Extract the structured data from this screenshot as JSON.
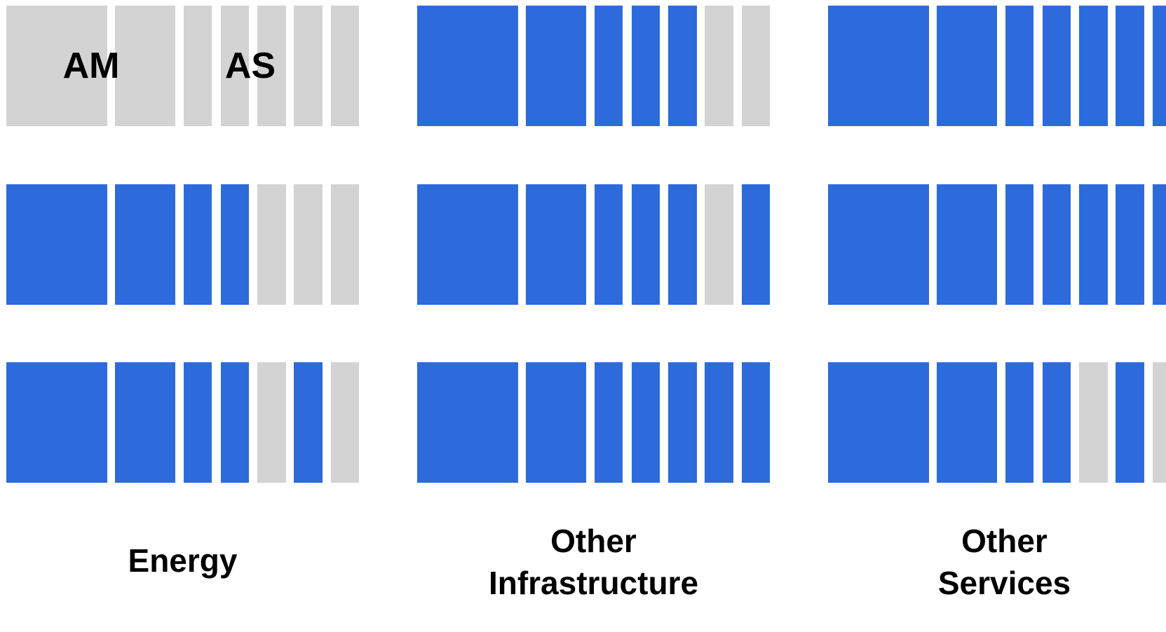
{
  "colors": {
    "filled": "#2d6bdc",
    "empty": "#d3d3d3",
    "text": "#000000"
  },
  "chart_data": {
    "type": "heatmap",
    "title": "",
    "column_labels": [
      "AM",
      "",
      "",
      "AS",
      "",
      "",
      ""
    ],
    "groups": [
      {
        "label_lines": [
          "Energy"
        ],
        "rows": [
          [
            0,
            0,
            0,
            0,
            0,
            0,
            0
          ],
          [
            1,
            1,
            1,
            1,
            0,
            0,
            0
          ],
          [
            1,
            1,
            1,
            1,
            0,
            1,
            0
          ]
        ]
      },
      {
        "label_lines": [
          "Other",
          "Infrastructure"
        ],
        "rows": [
          [
            1,
            1,
            1,
            1,
            1,
            0,
            0
          ],
          [
            1,
            1,
            1,
            1,
            1,
            0,
            1
          ],
          [
            1,
            1,
            1,
            1,
            1,
            1,
            1
          ]
        ]
      },
      {
        "label_lines": [
          "Other",
          "Services"
        ],
        "rows": [
          [
            1,
            1,
            1,
            1,
            1,
            1,
            1
          ],
          [
            1,
            1,
            1,
            1,
            1,
            1,
            1
          ],
          [
            1,
            1,
            1,
            1,
            0,
            1,
            0
          ]
        ]
      }
    ]
  }
}
